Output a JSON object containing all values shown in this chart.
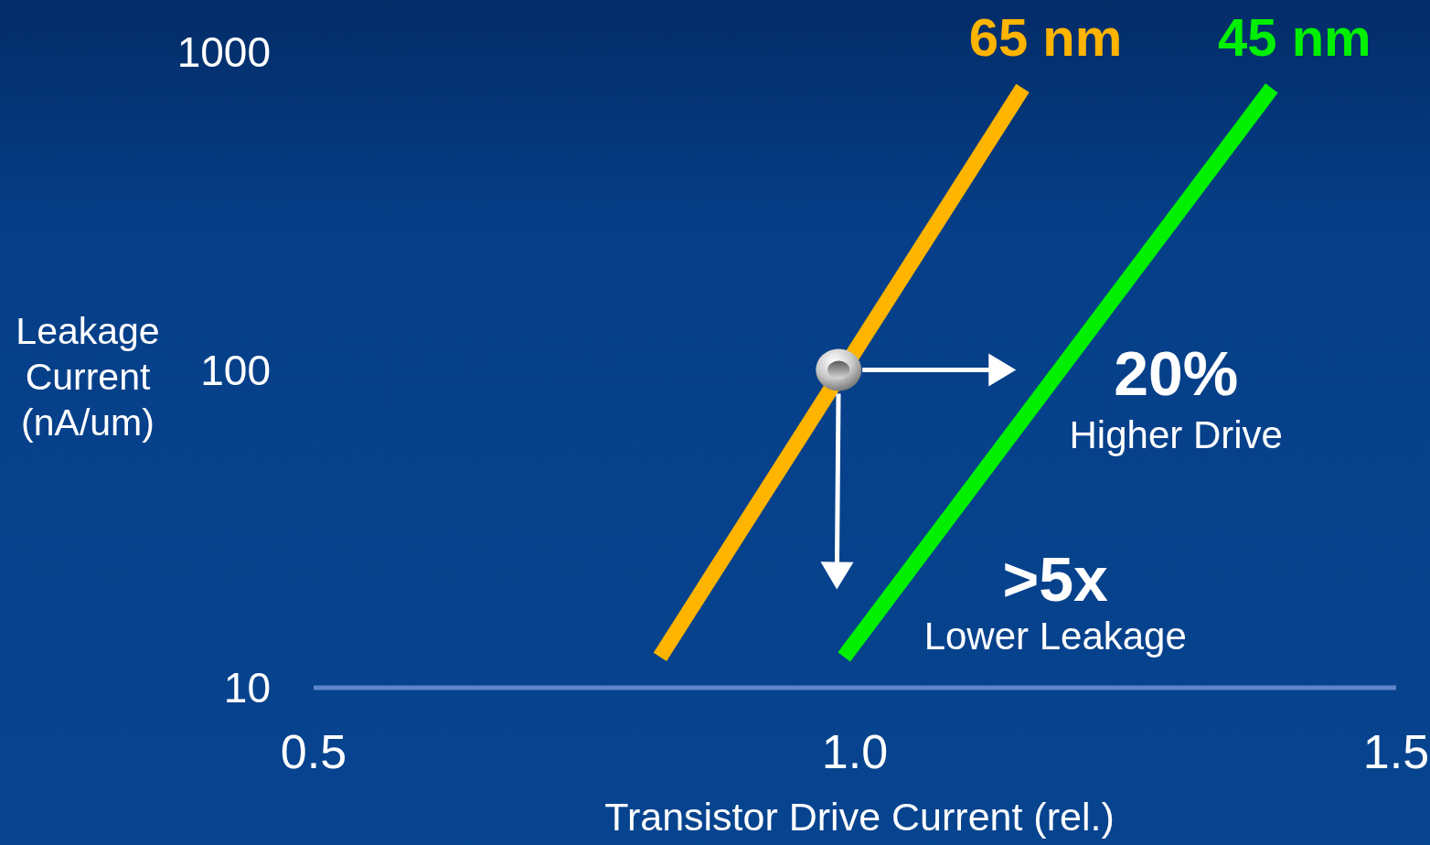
{
  "chart_data": {
    "type": "line",
    "xlabel": "Transistor Drive Current (rel.)",
    "ylabel": "Leakage Current (nA/um)",
    "series": [
      {
        "name": "65 nm",
        "color": "#ffb400",
        "x": [
          0.82,
          1.155
        ],
        "values": [
          12.5,
          770
        ]
      },
      {
        "name": "45 nm",
        "color": "#00f000",
        "x": [
          0.99,
          1.385
        ],
        "values": [
          12.5,
          770
        ]
      },
      {
        "type": "scatter",
        "color": "#c8c8c8",
        "x": [
          0.985
        ],
        "values": [
          100
        ]
      }
    ],
    "xlim": [
      0.5,
      1.5
    ],
    "xticks": [
      0.5,
      {
        "value": 1,
        "label": "1.0"
      },
      1.5
    ],
    "ylim": [
      10,
      1000
    ],
    "yticks": [
      10,
      100,
      1000
    ],
    "log": true,
    "annotations": [
      "20%\nHigher Drive",
      ">5x\nLower Leakage"
    ]
  }
}
